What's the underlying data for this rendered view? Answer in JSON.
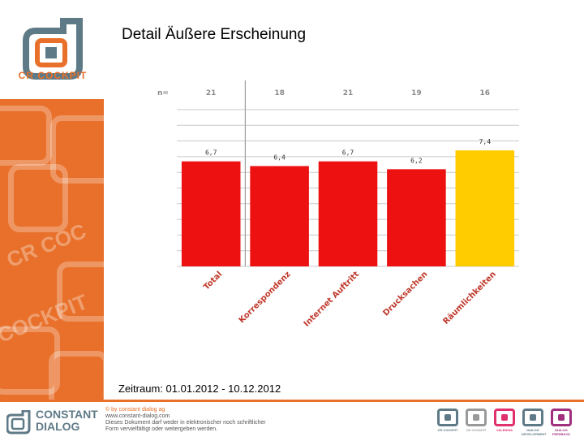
{
  "header": {
    "title": "Detail Äußere Erscheinung",
    "logo_text": "CR COCKPIT",
    "sidebar_watermark_top": "CR COC",
    "sidebar_watermark_bottom": "COCKPIT"
  },
  "chart_data": {
    "type": "bar",
    "title": "Detail Äußere Erscheinung",
    "n_label": "n=",
    "categories": [
      "Total",
      "Korrespondenz",
      "Internet Auftritt",
      "Drucksachen",
      "Räumlichkeiten"
    ],
    "n_values": [
      "21",
      "18",
      "21",
      "19",
      "16"
    ],
    "values": [
      6.7,
      6.4,
      6.7,
      6.2,
      7.4
    ],
    "value_labels": [
      "6,7",
      "6,4",
      "6,7",
      "6,2",
      "7,4"
    ],
    "bar_colors": [
      "#ee1111",
      "#ee1111",
      "#ee1111",
      "#ee1111",
      "#ffcc00"
    ],
    "ylim": [
      0,
      10
    ],
    "grid": true,
    "xlabel": "",
    "ylabel": ""
  },
  "period": {
    "text": "Zeitraum: 01.01.2012 - 10.12.2012"
  },
  "footer": {
    "brand_line1": "CONSTANT",
    "brand_line2": "DIALOG",
    "copyright": "© by constant dialog ag",
    "website": "www.constant-dialog.com",
    "disclaimer_line1": "Dieses Dokument darf weder in elektronischer noch schriftlicher",
    "disclaimer_line2": "Form vervielfältigt oder weitergeben werden.",
    "products": [
      {
        "name": "CR COCKPIT",
        "color": "#5f7a87"
      },
      {
        "name": "CE COCKPIT",
        "color": "#999999"
      },
      {
        "name": "VALENSIA",
        "color": "#e0306e"
      },
      {
        "name": "DIALOG DEVELOPMENT",
        "color": "#5f7a87"
      },
      {
        "name": "DIALOG FEEDBACK",
        "color": "#a0307f"
      }
    ]
  }
}
